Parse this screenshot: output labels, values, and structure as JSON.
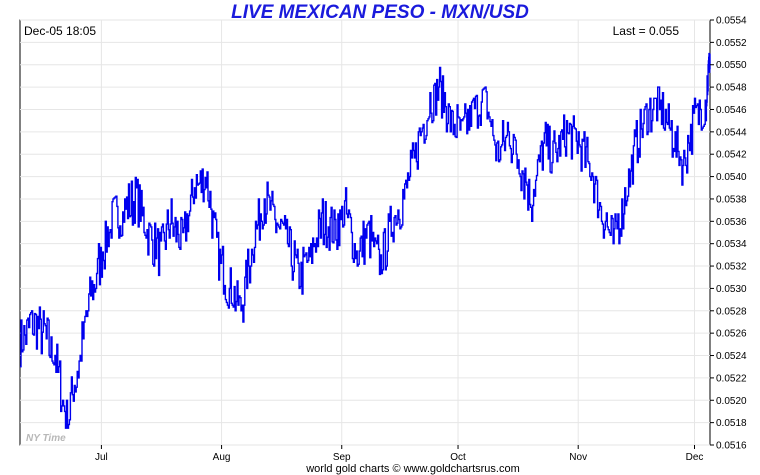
{
  "chart_data": {
    "type": "line",
    "title": "LIVE MEXICAN PESO - MXN/USD",
    "timestamp": "Dec-05  18:05",
    "last_label": "Last = 0.055",
    "timezone_label": "NY Time",
    "credit": "world gold charts © www.goldchartsrus.com",
    "x_tick_labels": [
      "Jul",
      "Aug",
      "Sep",
      "Oct",
      "Nov",
      "Dec"
    ],
    "y_ticks": [
      "0.0516",
      "0.0518",
      "0.0520",
      "0.0522",
      "0.0524",
      "0.0526",
      "0.0528",
      "0.0530",
      "0.0532",
      "0.0534",
      "0.0536",
      "0.0538",
      "0.0540",
      "0.0542",
      "0.0544",
      "0.0546",
      "0.0548",
      "0.0550",
      "0.0552",
      "0.0554"
    ],
    "ylim": [
      0.0516,
      0.0554
    ],
    "grid": true,
    "line_color": "#0000ee",
    "series": [
      {
        "x": [
          "Jun-10",
          "Jun-13",
          "Jun-16",
          "Jun-19",
          "Jun-22",
          "Jun-25",
          "Jun-28",
          "Jul-01",
          "Jul-04",
          "Jul-07",
          "Jul-10",
          "Jul-13",
          "Jul-16",
          "Jul-19",
          "Jul-22",
          "Jul-25",
          "Jul-28",
          "Jul-31",
          "Aug-03",
          "Aug-06",
          "Aug-09",
          "Aug-12",
          "Aug-15",
          "Aug-18",
          "Aug-21",
          "Aug-24",
          "Aug-27",
          "Aug-30",
          "Sep-02",
          "Sep-05",
          "Sep-08",
          "Sep-11",
          "Sep-14",
          "Sep-17",
          "Sep-20",
          "Sep-23",
          "Sep-26",
          "Sep-29",
          "Oct-02",
          "Oct-05",
          "Oct-08",
          "Oct-11",
          "Oct-14",
          "Oct-17",
          "Oct-20",
          "Oct-23",
          "Oct-26",
          "Oct-29",
          "Nov-01",
          "Nov-04",
          "Nov-07",
          "Nov-10",
          "Nov-13",
          "Nov-16",
          "Nov-19",
          "Nov-22",
          "Nov-25",
          "Nov-28",
          "Dec-01",
          "Dec-04",
          "Dec-05"
        ],
        "values": [
          0.0525,
          0.0527,
          0.0526,
          0.0524,
          0.0518,
          0.0523,
          0.0529,
          0.0533,
          0.0536,
          0.0537,
          0.0538,
          0.0535,
          0.0533,
          0.0536,
          0.0534,
          0.0539,
          0.054,
          0.0533,
          0.053,
          0.0528,
          0.0534,
          0.0538,
          0.0536,
          0.0534,
          0.0531,
          0.0533,
          0.0536,
          0.0535,
          0.0537,
          0.0533,
          0.0535,
          0.0532,
          0.0536,
          0.0538,
          0.0542,
          0.0546,
          0.0548,
          0.0545,
          0.0544,
          0.0546,
          0.0547,
          0.0542,
          0.0544,
          0.0541,
          0.0538,
          0.0543,
          0.0542,
          0.0544,
          0.0543,
          0.0541,
          0.0537,
          0.0534,
          0.0538,
          0.0543,
          0.0546,
          0.0546,
          0.0544,
          0.0541,
          0.0545,
          0.0547,
          0.0551
        ]
      }
    ]
  }
}
